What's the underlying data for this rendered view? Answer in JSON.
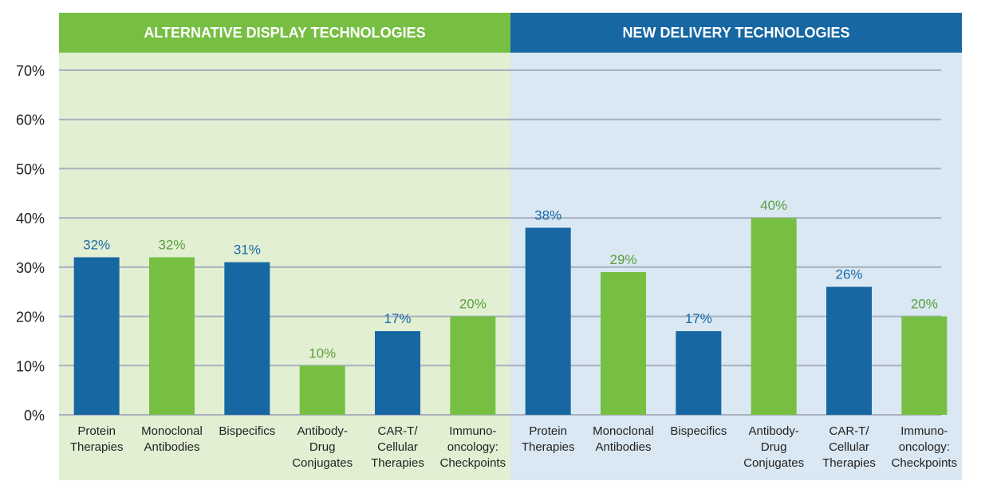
{
  "chart_data": {
    "type": "bar",
    "title": "",
    "xlabel": "",
    "ylabel": "",
    "ylim": [
      0,
      70
    ],
    "yticks": [
      0,
      10,
      20,
      30,
      40,
      50,
      60,
      70
    ],
    "ytick_labels": [
      "0%",
      "10%",
      "20%",
      "30%",
      "40%",
      "50%",
      "60%",
      "70%"
    ],
    "grid": true,
    "value_suffix": "%",
    "colors": {
      "blue": "#1767a3",
      "green": "#77bf43",
      "blue_label": "#1a6aa6",
      "green_label": "#5a9e3a"
    },
    "groups": [
      {
        "name": "ALTERNATIVE DISPLAY TECHNOLOGIES",
        "header_color": "#77bf43",
        "panel_color": "#e2efd3",
        "categories": [
          "Protein\nTherapies",
          "Monoclonal\nAntibodies",
          "Bispecifics",
          "Antibody-\nDrug\nConjugates",
          "CAR-T/\nCellular\nTherapies",
          "Immuno-\noncology:\nCheckpoints"
        ],
        "values": [
          32,
          32,
          31,
          10,
          17,
          20
        ],
        "bar_colors": [
          "blue",
          "green",
          "blue",
          "green",
          "blue",
          "green"
        ]
      },
      {
        "name": "NEW DELIVERY TECHNOLOGIES",
        "header_color": "#1767a3",
        "panel_color": "#d9e8f3",
        "categories": [
          "Protein\nTherapies",
          "Monoclonal\nAntibodies",
          "Bispecifics",
          "Antibody-\nDrug\nConjugates",
          "CAR-T/\nCellular\nTherapies",
          "Immuno-\noncology:\nCheckpoints"
        ],
        "values": [
          38,
          29,
          17,
          40,
          26,
          20
        ],
        "bar_colors": [
          "blue",
          "green",
          "blue",
          "green",
          "blue",
          "green"
        ]
      }
    ]
  }
}
